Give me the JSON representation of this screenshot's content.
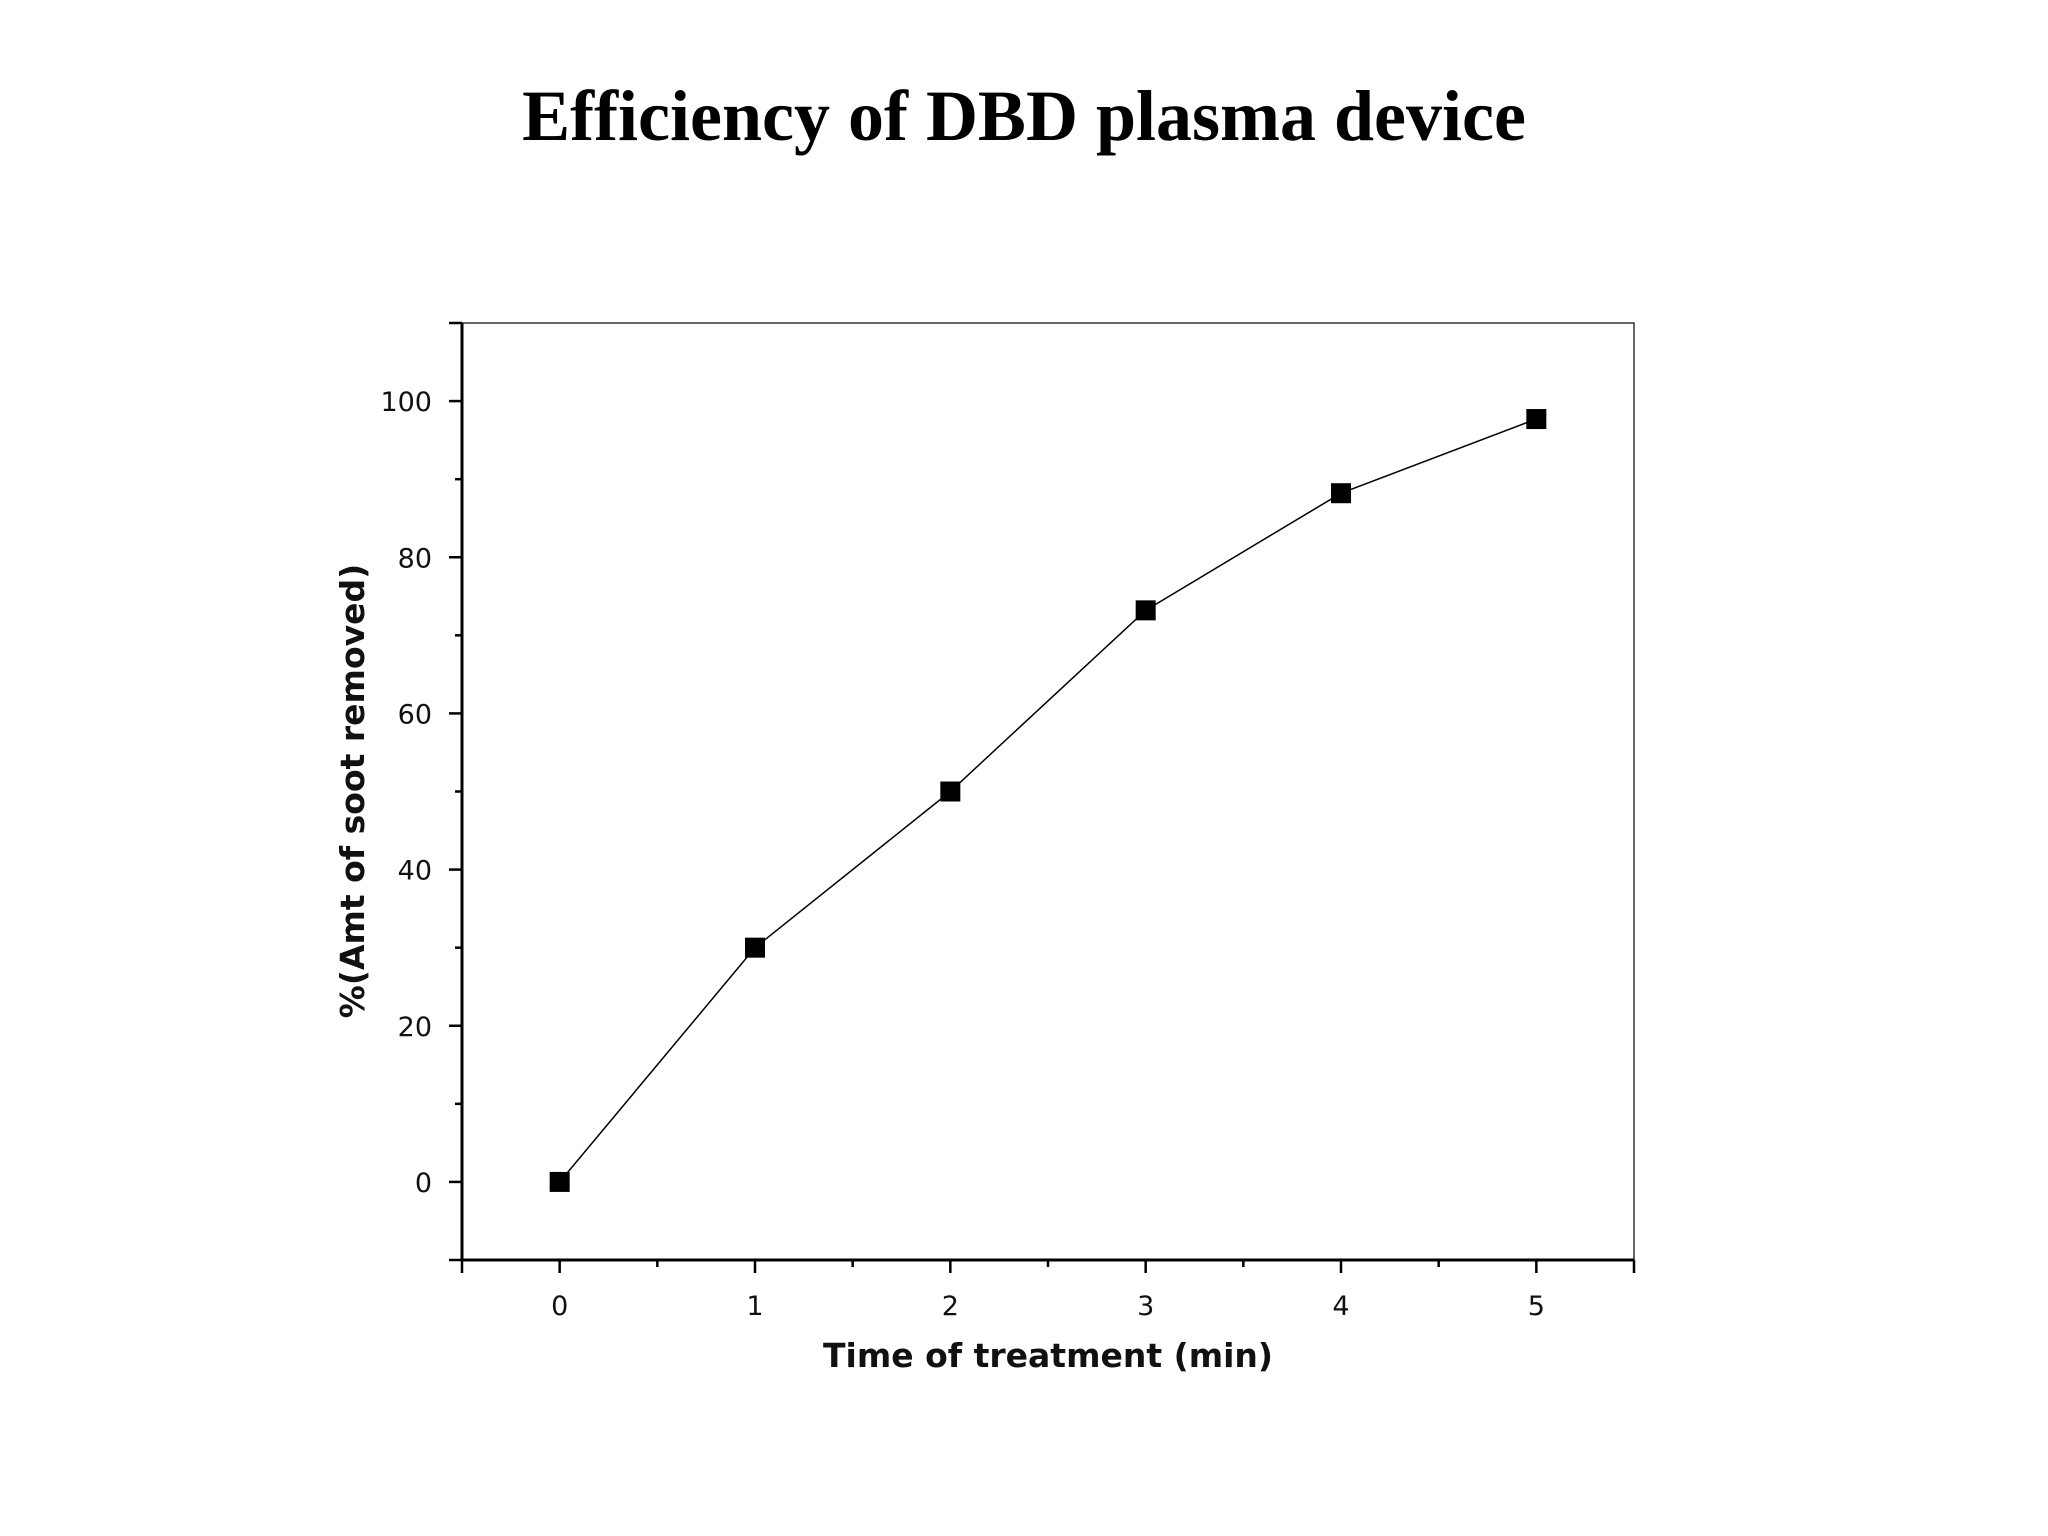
{
  "title": "Efficiency of DBD plasma device",
  "chart_data": {
    "type": "line",
    "title": "Efficiency of DBD plasma device",
    "xlabel": "Time of treatment (min)",
    "ylabel": "%(Amt of soot removed)",
    "xlim": [
      -0.5,
      5.5
    ],
    "ylim": [
      -10,
      110
    ],
    "xticks": [
      0,
      1,
      2,
      3,
      4,
      5
    ],
    "yticks": [
      0,
      20,
      40,
      60,
      80,
      100
    ],
    "grid": false,
    "marker": "square",
    "series": [
      {
        "x": [
          0,
          1,
          2,
          3,
          4,
          5
        ],
        "y": [
          0,
          30,
          50,
          73.2,
          88.2,
          97.7
        ]
      }
    ],
    "colors": {
      "line": "#000000",
      "marker": "#000000",
      "axis": "#000000"
    }
  }
}
